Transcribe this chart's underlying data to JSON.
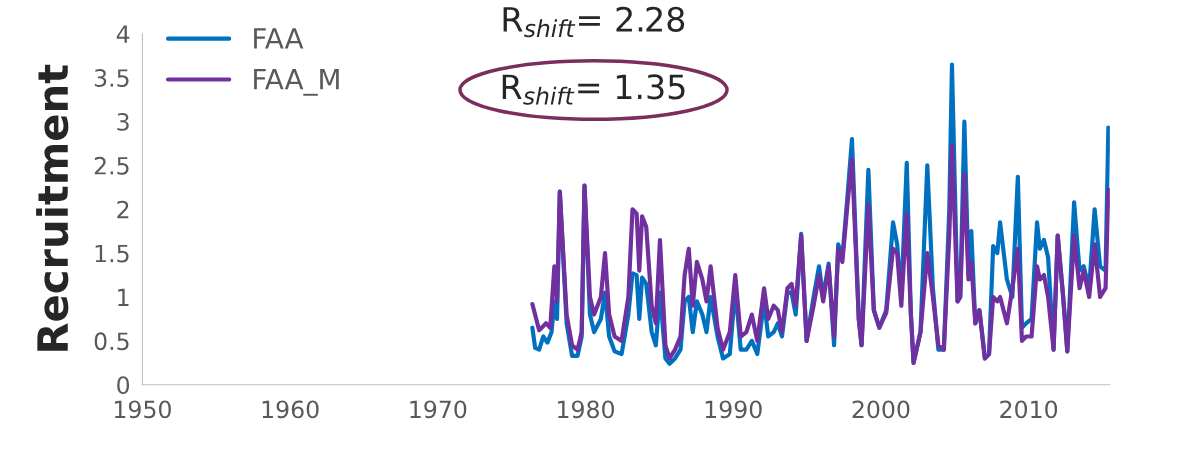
{
  "chart_data": {
    "type": "line",
    "ylabel": "Recruitment",
    "annotations": [
      "R$_{shift}$= 2.28",
      "R$_{shift}$= 1.35"
    ],
    "xlim": [
      1950,
      2015.5
    ],
    "xticks": [
      1950,
      1960,
      1970,
      1980,
      1990,
      2000,
      2010
    ],
    "ylim": [
      0,
      4
    ],
    "yticks": [
      0,
      0.5,
      1,
      1.5,
      2,
      2.5,
      3,
      3.5,
      4
    ],
    "grid": false,
    "legend": "top left",
    "marker": "none",
    "line_style": "solid",
    "series": [
      {
        "name": "FAA",
        "color": "#0070c0",
        "x": [
          1976.4,
          1976.59,
          1976.86,
          1977.14,
          1977.42,
          1977.7,
          1977.89,
          1978.07,
          1978.26,
          1978.72,
          1979.09,
          1979.46,
          1979.74,
          1979.93,
          1980.3,
          1980.58,
          1981.04,
          1981.32,
          1981.6,
          1981.97,
          1982.44,
          1982.9,
          1983.18,
          1983.46,
          1983.64,
          1983.83,
          1984.11,
          1984.48,
          1984.76,
          1985.04,
          1985.41,
          1985.69,
          1986.06,
          1986.43,
          1986.71,
          1986.99,
          1987.26,
          1987.54,
          1987.91,
          1988.19,
          1988.47,
          1988.94,
          1989.31,
          1989.77,
          1990.14,
          1990.51,
          1990.89,
          1991.26,
          1991.63,
          1992.09,
          1992.37,
          1992.74,
          1993.02,
          1993.3,
          1993.67,
          1993.95,
          1994.23,
          1994.6,
          1994.97,
          1995.44,
          1995.81,
          1996.09,
          1996.46,
          1996.83,
          1997.11,
          1997.39,
          1997.76,
          1998.04,
          1998.5,
          1998.69,
          1999.15,
          1999.52,
          1999.89,
          2000.36,
          2000.82,
          2001.1,
          2001.38,
          2001.75,
          2002.03,
          2002.21,
          2002.68,
          2003.14,
          2003.52,
          2003.89,
          2004.26,
          2004.63,
          2004.81,
          2005.19,
          2005.37,
          2005.65,
          2005.93,
          2006.12,
          2006.39,
          2006.67,
          2007.04,
          2007.32,
          2007.6,
          2007.88,
          2008.07,
          2008.53,
          2008.9,
          2009.27,
          2009.55,
          2009.83,
          2010.2,
          2010.57,
          2010.76,
          2011.04,
          2011.32,
          2011.69,
          2011.97,
          2012.34,
          2012.62,
          2013.08,
          2013.45,
          2013.73,
          2014.1,
          2014.47,
          2014.84,
          2015.21,
          2015.4
        ],
        "values": [
          0.65,
          0.42,
          0.4,
          0.55,
          0.48,
          0.6,
          0.95,
          0.75,
          2.2,
          0.7,
          0.33,
          0.33,
          0.55,
          2.27,
          0.8,
          0.6,
          0.75,
          1.05,
          0.55,
          0.38,
          0.35,
          0.8,
          1.27,
          1.25,
          0.75,
          1.22,
          1.15,
          0.6,
          0.45,
          1.05,
          0.3,
          0.24,
          0.3,
          0.4,
          0.95,
          1.0,
          0.6,
          0.95,
          0.8,
          0.6,
          1.0,
          0.55,
          0.3,
          0.35,
          1.1,
          0.4,
          0.4,
          0.5,
          0.35,
          0.95,
          0.55,
          0.6,
          0.7,
          0.55,
          1.05,
          1.05,
          0.8,
          1.72,
          0.5,
          1.0,
          1.35,
          1.0,
          1.38,
          0.45,
          1.6,
          1.45,
          2.2,
          2.8,
          0.75,
          0.45,
          2.45,
          0.85,
          0.65,
          0.85,
          1.85,
          1.6,
          1.0,
          2.53,
          0.8,
          0.25,
          0.6,
          2.5,
          1.1,
          0.4,
          0.4,
          2.0,
          3.65,
          0.95,
          1.0,
          3.0,
          1.25,
          1.75,
          0.7,
          0.85,
          0.3,
          0.35,
          1.58,
          1.5,
          1.85,
          1.2,
          1.0,
          2.37,
          0.65,
          0.7,
          0.75,
          1.85,
          1.55,
          1.65,
          1.45,
          0.4,
          1.7,
          1.0,
          0.38,
          2.08,
          1.3,
          1.35,
          1.1,
          2.0,
          1.35,
          1.3,
          2.93
        ]
      },
      {
        "name": "FAA_M",
        "color": "#7030a0",
        "x": [
          1976.4,
          1976.86,
          1977.33,
          1977.61,
          1977.89,
          1978.07,
          1978.26,
          1978.72,
          1979.09,
          1979.46,
          1979.74,
          1979.93,
          1980.3,
          1980.58,
          1981.04,
          1981.32,
          1981.6,
          1981.97,
          1982.44,
          1982.9,
          1983.18,
          1983.46,
          1983.64,
          1983.83,
          1984.11,
          1984.48,
          1984.76,
          1985.04,
          1985.41,
          1985.69,
          1986.06,
          1986.43,
          1986.71,
          1986.99,
          1987.26,
          1987.54,
          1987.91,
          1988.19,
          1988.47,
          1988.94,
          1989.31,
          1989.77,
          1990.14,
          1990.51,
          1990.89,
          1991.26,
          1991.63,
          1992.09,
          1992.37,
          1992.74,
          1993.02,
          1993.3,
          1993.67,
          1993.95,
          1994.23,
          1994.6,
          1994.97,
          1995.44,
          1995.81,
          1996.09,
          1996.46,
          1996.83,
          1997.11,
          1997.39,
          1997.76,
          1998.04,
          1998.5,
          1998.69,
          1999.15,
          1999.52,
          1999.89,
          2000.36,
          2000.82,
          2001.1,
          2001.38,
          2001.75,
          2002.03,
          2002.21,
          2002.68,
          2003.14,
          2003.52,
          2003.89,
          2004.26,
          2004.63,
          2004.81,
          2005.19,
          2005.37,
          2005.65,
          2005.93,
          2006.12,
          2006.39,
          2006.67,
          2007.04,
          2007.32,
          2007.6,
          2007.88,
          2008.07,
          2008.53,
          2008.9,
          2009.27,
          2009.55,
          2009.83,
          2010.2,
          2010.57,
          2010.76,
          2011.04,
          2011.32,
          2011.69,
          2011.97,
          2012.34,
          2012.62,
          2013.08,
          2013.45,
          2013.73,
          2014.1,
          2014.47,
          2014.84,
          2015.21,
          2015.4
        ],
        "values": [
          0.92,
          0.62,
          0.7,
          0.65,
          1.35,
          0.95,
          2.2,
          0.8,
          0.45,
          0.4,
          0.6,
          2.27,
          1.0,
          0.8,
          1.0,
          1.5,
          0.8,
          0.55,
          0.5,
          1.0,
          2.0,
          1.95,
          1.3,
          1.92,
          1.8,
          0.9,
          0.7,
          1.65,
          0.45,
          0.3,
          0.4,
          0.55,
          1.25,
          1.55,
          0.9,
          1.4,
          1.2,
          0.95,
          1.35,
          0.65,
          0.4,
          0.6,
          1.25,
          0.55,
          0.6,
          0.8,
          0.5,
          1.1,
          0.75,
          0.9,
          0.85,
          0.6,
          1.1,
          1.15,
          0.9,
          1.7,
          0.5,
          0.9,
          1.25,
          0.95,
          1.35,
          0.55,
          1.55,
          1.4,
          2.1,
          2.57,
          0.75,
          0.45,
          2.05,
          0.85,
          0.65,
          0.82,
          1.55,
          1.5,
          0.9,
          1.95,
          0.8,
          0.25,
          0.6,
          1.5,
          1.0,
          0.45,
          0.4,
          1.7,
          2.73,
          0.95,
          1.0,
          2.4,
          1.2,
          1.4,
          0.7,
          0.85,
          0.3,
          0.35,
          1.0,
          0.95,
          1.0,
          0.7,
          1.1,
          1.55,
          0.5,
          0.55,
          0.55,
          1.35,
          1.2,
          1.25,
          1.0,
          0.4,
          1.7,
          1.0,
          0.38,
          1.7,
          1.1,
          1.3,
          1.0,
          1.6,
          1.0,
          1.1,
          2.22
        ]
      }
    ]
  }
}
